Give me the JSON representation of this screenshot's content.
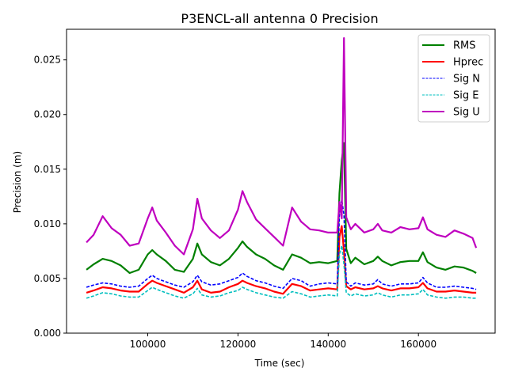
{
  "chart_data": {
    "type": "line",
    "title": "P3ENCL-all antenna 0 Precision",
    "xlabel": "Time (sec)",
    "ylabel": "Precision (m)",
    "xlim": [
      82000,
      177000
    ],
    "ylim": [
      0,
      0.0278
    ],
    "x_ticks": [
      {
        "value": 100000,
        "label": "100000"
      },
      {
        "value": 120000,
        "label": "120000"
      },
      {
        "value": 140000,
        "label": "140000"
      },
      {
        "value": 160000,
        "label": "160000"
      }
    ],
    "y_ticks": [
      {
        "value": 0.0,
        "label": "0.000"
      },
      {
        "value": 0.005,
        "label": "0.005"
      },
      {
        "value": 0.01,
        "label": "0.010"
      },
      {
        "value": 0.015,
        "label": "0.015"
      },
      {
        "value": 0.02,
        "label": "0.020"
      },
      {
        "value": 0.025,
        "label": "0.025"
      }
    ],
    "grid": false,
    "legend_position": "top-right",
    "x": [
      86400,
      88000,
      90000,
      92000,
      94000,
      96000,
      98000,
      100000,
      101000,
      102000,
      104000,
      106000,
      108000,
      110000,
      111000,
      112000,
      114000,
      116000,
      118000,
      120000,
      121000,
      122000,
      124000,
      126000,
      128000,
      130000,
      132000,
      134000,
      136000,
      138000,
      140000,
      142000,
      142500,
      143000,
      143500,
      144000,
      145000,
      146000,
      148000,
      150000,
      151000,
      152000,
      154000,
      156000,
      158000,
      160000,
      161000,
      162000,
      164000,
      166000,
      168000,
      170000,
      172000,
      172800
    ],
    "series": [
      {
        "name": "RMS",
        "color": "#008000",
        "dash": "solid",
        "values": [
          0.0058,
          0.0063,
          0.0068,
          0.0066,
          0.0062,
          0.0055,
          0.0058,
          0.0072,
          0.0076,
          0.0072,
          0.0066,
          0.0058,
          0.0056,
          0.0068,
          0.0082,
          0.0072,
          0.0065,
          0.0062,
          0.0068,
          0.0078,
          0.0084,
          0.0079,
          0.0072,
          0.0068,
          0.0062,
          0.0058,
          0.0072,
          0.0069,
          0.0064,
          0.0065,
          0.0064,
          0.0066,
          0.0128,
          0.0158,
          0.0174,
          0.0077,
          0.0064,
          0.0069,
          0.0063,
          0.0066,
          0.007,
          0.0066,
          0.0062,
          0.0065,
          0.0066,
          0.0066,
          0.0074,
          0.0065,
          0.006,
          0.0058,
          0.0061,
          0.006,
          0.0057,
          0.0055
        ]
      },
      {
        "name": "Hprec",
        "color": "#ff0000",
        "dash": "solid",
        "values": [
          0.0037,
          0.0039,
          0.0042,
          0.0041,
          0.0039,
          0.0038,
          0.0038,
          0.0045,
          0.0048,
          0.0046,
          0.0043,
          0.004,
          0.0037,
          0.0042,
          0.0048,
          0.004,
          0.0037,
          0.0038,
          0.0042,
          0.0045,
          0.0048,
          0.0046,
          0.0043,
          0.0041,
          0.0038,
          0.0036,
          0.0045,
          0.0043,
          0.0039,
          0.004,
          0.0041,
          0.004,
          0.0088,
          0.0098,
          0.0075,
          0.0043,
          0.004,
          0.0042,
          0.004,
          0.0041,
          0.0043,
          0.0041,
          0.0039,
          0.0041,
          0.0041,
          0.0042,
          0.0046,
          0.0041,
          0.0038,
          0.0038,
          0.0039,
          0.0038,
          0.0037,
          0.0037
        ]
      },
      {
        "name": "Sig N",
        "color": "#0000ff",
        "dash": "dashed",
        "values": [
          0.0042,
          0.0044,
          0.0046,
          0.0045,
          0.0043,
          0.0042,
          0.0043,
          0.005,
          0.0053,
          0.005,
          0.0047,
          0.0044,
          0.0042,
          0.0047,
          0.0053,
          0.0047,
          0.0044,
          0.0045,
          0.0048,
          0.0051,
          0.0055,
          0.0052,
          0.0048,
          0.0046,
          0.0043,
          0.0041,
          0.005,
          0.0048,
          0.0043,
          0.0045,
          0.0046,
          0.0045,
          0.011,
          0.0122,
          0.0108,
          0.0047,
          0.0043,
          0.0046,
          0.0044,
          0.0045,
          0.0049,
          0.0045,
          0.0043,
          0.0045,
          0.0045,
          0.0046,
          0.0051,
          0.0046,
          0.0042,
          0.0042,
          0.0043,
          0.0042,
          0.0041,
          0.004
        ]
      },
      {
        "name": "Sig E",
        "color": "#00bfbf",
        "dash": "dashed",
        "values": [
          0.0032,
          0.0034,
          0.0037,
          0.0036,
          0.0034,
          0.0033,
          0.0033,
          0.0039,
          0.0042,
          0.004,
          0.0037,
          0.0034,
          0.0032,
          0.0036,
          0.0041,
          0.0035,
          0.0033,
          0.0034,
          0.0037,
          0.0039,
          0.0042,
          0.004,
          0.0037,
          0.0035,
          0.0033,
          0.0032,
          0.0038,
          0.0036,
          0.0033,
          0.0034,
          0.0035,
          0.0034,
          0.0072,
          0.008,
          0.0063,
          0.0037,
          0.0034,
          0.0036,
          0.0034,
          0.0035,
          0.0037,
          0.0035,
          0.0033,
          0.0035,
          0.0035,
          0.0036,
          0.004,
          0.0035,
          0.0033,
          0.0032,
          0.0033,
          0.0033,
          0.0032,
          0.0032
        ]
      },
      {
        "name": "Sig U",
        "color": "#bf00bf",
        "dash": "solid",
        "values": [
          0.0083,
          0.009,
          0.0107,
          0.0096,
          0.009,
          0.008,
          0.0082,
          0.0105,
          0.0115,
          0.0103,
          0.0092,
          0.008,
          0.0072,
          0.0095,
          0.0123,
          0.0105,
          0.0094,
          0.0087,
          0.0094,
          0.0113,
          0.013,
          0.012,
          0.0104,
          0.0096,
          0.0088,
          0.008,
          0.0115,
          0.0102,
          0.0095,
          0.0094,
          0.0092,
          0.0092,
          0.012,
          0.0105,
          0.027,
          0.0106,
          0.0095,
          0.01,
          0.0092,
          0.0095,
          0.01,
          0.0094,
          0.0092,
          0.0097,
          0.0095,
          0.0096,
          0.0106,
          0.0095,
          0.009,
          0.0088,
          0.0094,
          0.0091,
          0.0087,
          0.0078
        ]
      }
    ]
  }
}
